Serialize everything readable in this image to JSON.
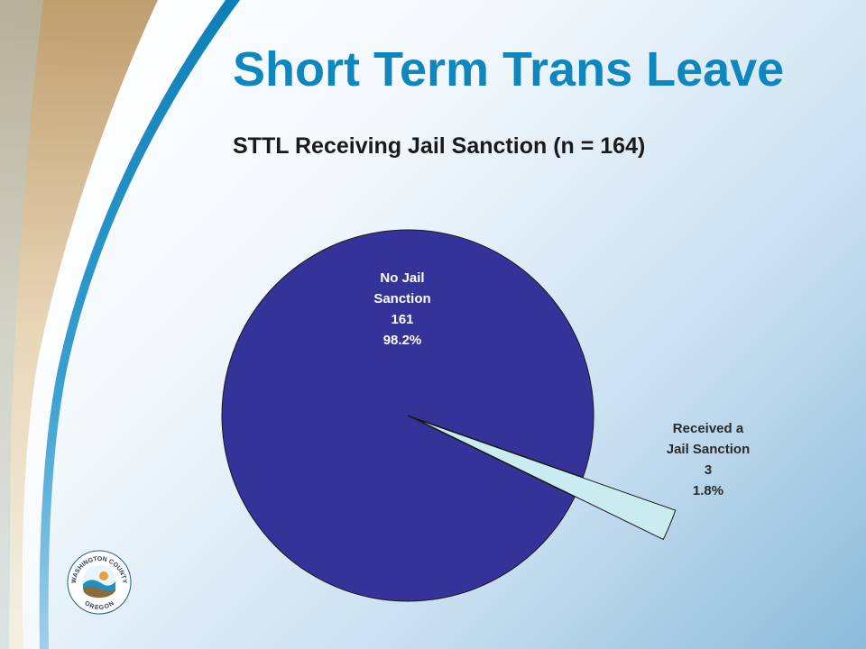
{
  "slide": {
    "title": "Short Term Trans Leave",
    "subtitle": "STTL Receiving Jail Sanction (n = 164)"
  },
  "logo": {
    "text_top": "WASHINGTON COUNTY",
    "text_bottom": "OREGON"
  },
  "colors": {
    "title": "#0f86bd",
    "slice_no": "#333399",
    "slice_yes": "#c9ecf0",
    "swoosh_tan": "#c9a877",
    "swoosh_blue": "#1c8fc4"
  },
  "chart_data": {
    "type": "pie",
    "title": "STTL Receiving Jail Sanction (n = 164)",
    "n": 164,
    "slices": [
      {
        "label_line1": "No Jail",
        "label_line2": "Sanction",
        "value": 161,
        "percent": "98.2%"
      },
      {
        "label_line1": "Received a",
        "label_line2": "Jail Sanction",
        "value": 3,
        "percent": "1.8%",
        "exploded": true
      }
    ]
  }
}
